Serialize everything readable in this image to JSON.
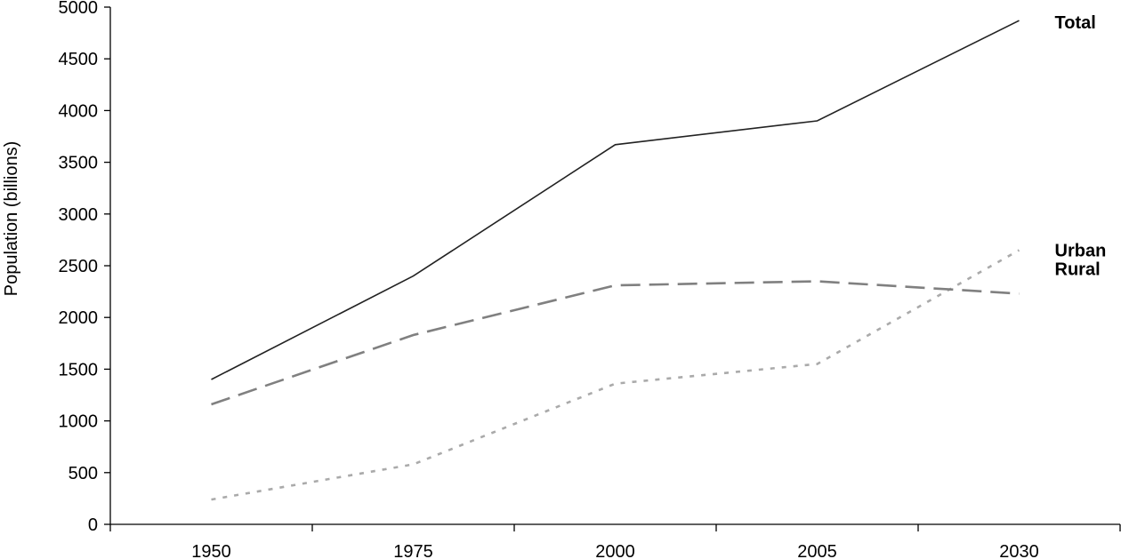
{
  "chart_data": {
    "type": "line",
    "categories": [
      "1950",
      "1975",
      "2000",
      "2005",
      "2030"
    ],
    "ylabel": "Population (billions)",
    "xlabel": "",
    "ylim": [
      0,
      5000
    ],
    "yticks": [
      0,
      500,
      1000,
      1500,
      2000,
      2500,
      3000,
      3500,
      4000,
      4500,
      5000
    ],
    "grid": false,
    "legend": "none",
    "series": [
      {
        "name": "Total",
        "values": [
          1400,
          2400,
          3670,
          3900,
          4870
        ],
        "color": "#222222",
        "style": "solid"
      },
      {
        "name": "Urban",
        "values": [
          240,
          580,
          1360,
          1550,
          2650
        ],
        "color": "#aaaaaa",
        "style": "dotted"
      },
      {
        "name": "Rural",
        "values": [
          1160,
          1830,
          2310,
          2350,
          2230
        ],
        "color": "#808080",
        "style": "dashed"
      }
    ]
  }
}
